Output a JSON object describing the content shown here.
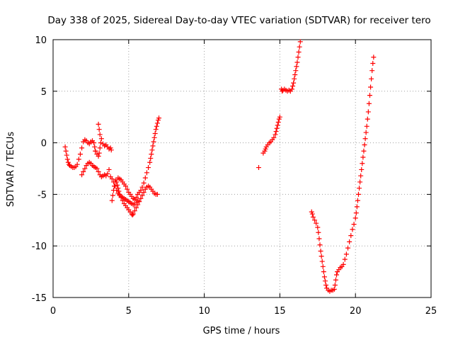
{
  "chart_data": {
    "type": "scatter",
    "title": "Day 338 of 2025, Sidereal Day-to-day VTEC variation (SDTVAR) for receiver tero",
    "xlabel": "GPS time / hours",
    "ylabel": "SDTVAR / TECUs",
    "xlim": [
      0,
      25
    ],
    "ylim": [
      -15,
      10
    ],
    "xticks": [
      "0",
      "5",
      "10",
      "15",
      "20",
      "25"
    ],
    "yticks": [
      "-15",
      "-10",
      "-5",
      "0",
      "5",
      "10"
    ],
    "grid": true,
    "marker": "plus",
    "marker_color": "#ff0000",
    "series": [
      {
        "name": "",
        "points": [
          [
            0.8,
            -0.4
          ],
          [
            0.85,
            -0.8
          ],
          [
            0.9,
            -1.2
          ],
          [
            0.95,
            -1.6
          ],
          [
            1.0,
            -1.9
          ],
          [
            1.05,
            -2.1
          ],
          [
            1.1,
            -2.2
          ],
          [
            1.2,
            -2.3
          ],
          [
            1.3,
            -2.4
          ],
          [
            1.4,
            -2.4
          ],
          [
            1.5,
            -2.3
          ],
          [
            1.6,
            -2.1
          ],
          [
            1.7,
            -1.6
          ],
          [
            1.8,
            -1.1
          ],
          [
            1.9,
            -0.5
          ],
          [
            2.0,
            0.1
          ],
          [
            2.1,
            0.3
          ],
          [
            2.2,
            0.2
          ],
          [
            2.3,
            0.0
          ],
          [
            2.4,
            -0.1
          ],
          [
            2.5,
            0.1
          ],
          [
            2.6,
            0.2
          ],
          [
            2.7,
            0.0
          ],
          [
            2.75,
            -0.4
          ],
          [
            2.8,
            -0.8
          ]
        ]
      },
      {
        "name": "",
        "points": [
          [
            1.9,
            -3.1
          ],
          [
            2.0,
            -2.8
          ],
          [
            2.1,
            -2.5
          ],
          [
            2.2,
            -2.2
          ],
          [
            2.3,
            -2.0
          ],
          [
            2.4,
            -1.9
          ],
          [
            2.5,
            -2.0
          ],
          [
            2.6,
            -2.2
          ],
          [
            2.7,
            -2.3
          ],
          [
            2.8,
            -2.4
          ],
          [
            2.9,
            -2.5
          ],
          [
            3.0,
            -2.8
          ],
          [
            3.1,
            -3.1
          ],
          [
            3.2,
            -3.3
          ],
          [
            3.3,
            -3.2
          ],
          [
            3.4,
            -3.1
          ],
          [
            3.5,
            -3.2
          ],
          [
            3.6,
            -3.0
          ],
          [
            3.7,
            -2.6
          ]
        ]
      },
      {
        "name": "",
        "points": [
          [
            2.8,
            -0.8
          ],
          [
            2.9,
            -1.1
          ],
          [
            3.0,
            -1.3
          ],
          [
            3.05,
            -1.0
          ],
          [
            3.1,
            -0.5
          ],
          [
            3.15,
            0.0
          ],
          [
            3.2,
            0.4
          ],
          [
            3.3,
            -0.1
          ],
          [
            3.4,
            -0.3
          ],
          [
            3.5,
            -0.2
          ],
          [
            3.6,
            -0.4
          ],
          [
            3.7,
            -0.6
          ],
          [
            3.8,
            -0.5
          ],
          [
            3.85,
            -0.7
          ]
        ]
      },
      {
        "name": "",
        "points": [
          [
            3.0,
            1.8
          ],
          [
            3.05,
            1.3
          ],
          [
            3.1,
            0.8
          ]
        ]
      },
      {
        "name": "",
        "points": [
          [
            3.8,
            -3.3
          ],
          [
            3.9,
            -3.5
          ],
          [
            4.0,
            -3.8
          ],
          [
            4.1,
            -4.2
          ],
          [
            4.2,
            -4.6
          ],
          [
            4.3,
            -4.9
          ],
          [
            4.4,
            -5.1
          ],
          [
            4.5,
            -5.2
          ],
          [
            4.6,
            -5.3
          ],
          [
            4.7,
            -5.4
          ],
          [
            4.8,
            -5.5
          ],
          [
            4.9,
            -5.6
          ],
          [
            5.0,
            -5.7
          ],
          [
            5.1,
            -5.8
          ],
          [
            5.2,
            -5.9
          ],
          [
            5.3,
            -6.0
          ],
          [
            5.4,
            -6.0
          ],
          [
            5.5,
            -5.8
          ],
          [
            5.6,
            -5.6
          ]
        ]
      },
      {
        "name": "",
        "points": [
          [
            3.9,
            -5.6
          ],
          [
            3.95,
            -5.1
          ],
          [
            4.0,
            -4.6
          ],
          [
            4.05,
            -4.2
          ],
          [
            4.1,
            -3.8
          ],
          [
            4.15,
            -3.6
          ],
          [
            4.2,
            -3.8
          ],
          [
            4.25,
            -4.1
          ],
          [
            4.3,
            -4.4
          ],
          [
            4.35,
            -4.7
          ],
          [
            4.4,
            -5.0
          ],
          [
            4.5,
            -5.3
          ],
          [
            4.6,
            -5.6
          ],
          [
            4.7,
            -5.9
          ],
          [
            4.8,
            -6.1
          ],
          [
            4.9,
            -6.3
          ],
          [
            5.0,
            -6.5
          ],
          [
            5.1,
            -6.7
          ],
          [
            5.2,
            -6.9
          ],
          [
            5.25,
            -7.0
          ],
          [
            5.3,
            -6.9
          ],
          [
            5.4,
            -6.6
          ],
          [
            5.5,
            -6.3
          ],
          [
            5.6,
            -6.0
          ],
          [
            5.7,
            -5.7
          ],
          [
            5.8,
            -5.4
          ],
          [
            5.9,
            -5.1
          ],
          [
            6.0,
            -4.8
          ],
          [
            6.1,
            -4.5
          ],
          [
            6.2,
            -4.3
          ],
          [
            6.3,
            -4.2
          ],
          [
            6.4,
            -4.3
          ],
          [
            6.5,
            -4.5
          ],
          [
            6.6,
            -4.7
          ],
          [
            6.7,
            -4.9
          ],
          [
            6.8,
            -5.0
          ],
          [
            6.9,
            -5.0
          ]
        ]
      },
      {
        "name": "",
        "points": [
          [
            4.3,
            -3.4
          ],
          [
            4.4,
            -3.5
          ],
          [
            4.5,
            -3.6
          ],
          [
            4.6,
            -3.8
          ],
          [
            4.7,
            -4.0
          ],
          [
            4.8,
            -4.2
          ],
          [
            4.9,
            -4.5
          ],
          [
            5.0,
            -4.8
          ],
          [
            5.1,
            -5.0
          ],
          [
            5.2,
            -5.2
          ],
          [
            5.3,
            -5.4
          ],
          [
            5.4,
            -5.5
          ],
          [
            5.5,
            -5.3
          ],
          [
            5.6,
            -5.0
          ],
          [
            5.7,
            -4.8
          ],
          [
            5.8,
            -4.6
          ],
          [
            5.9,
            -4.3
          ],
          [
            6.0,
            -3.9
          ],
          [
            6.1,
            -3.4
          ],
          [
            6.2,
            -2.9
          ],
          [
            6.3,
            -2.4
          ],
          [
            6.4,
            -1.9
          ],
          [
            6.45,
            -1.5
          ],
          [
            6.5,
            -1.1
          ],
          [
            6.55,
            -0.7
          ],
          [
            6.6,
            -0.3
          ],
          [
            6.65,
            0.1
          ],
          [
            6.7,
            0.5
          ],
          [
            6.75,
            0.9
          ],
          [
            6.8,
            1.3
          ],
          [
            6.85,
            1.6
          ],
          [
            6.9,
            1.9
          ],
          [
            6.95,
            2.2
          ],
          [
            7.0,
            2.4
          ]
        ]
      },
      {
        "name": "",
        "points": [
          [
            13.6,
            -2.4
          ]
        ]
      },
      {
        "name": "",
        "points": [
          [
            13.9,
            -1.0
          ],
          [
            14.0,
            -0.8
          ],
          [
            14.05,
            -0.6
          ],
          [
            14.1,
            -0.4
          ],
          [
            14.2,
            -0.2
          ],
          [
            14.3,
            0.0
          ],
          [
            14.4,
            0.1
          ],
          [
            14.5,
            0.3
          ],
          [
            14.6,
            0.5
          ],
          [
            14.7,
            0.8
          ],
          [
            14.75,
            1.1
          ],
          [
            14.8,
            1.4
          ],
          [
            14.85,
            1.7
          ],
          [
            14.9,
            2.0
          ],
          [
            14.95,
            2.3
          ],
          [
            15.0,
            2.5
          ]
        ]
      },
      {
        "name": "",
        "points": [
          [
            15.1,
            5.2
          ],
          [
            15.15,
            5.0
          ],
          [
            15.2,
            5.1
          ],
          [
            15.3,
            5.2
          ],
          [
            15.4,
            5.1
          ],
          [
            15.5,
            5.0
          ],
          [
            15.6,
            5.1
          ],
          [
            15.7,
            5.0
          ],
          [
            15.8,
            5.2
          ],
          [
            15.85,
            5.5
          ],
          [
            15.9,
            5.8
          ],
          [
            15.95,
            6.2
          ],
          [
            16.0,
            6.6
          ],
          [
            16.05,
            7.0
          ],
          [
            16.1,
            7.4
          ],
          [
            16.15,
            7.8
          ],
          [
            16.2,
            8.3
          ],
          [
            16.25,
            8.8
          ],
          [
            16.3,
            9.3
          ],
          [
            16.35,
            9.8
          ]
        ]
      },
      {
        "name": "",
        "points": [
          [
            17.1,
            -6.7
          ],
          [
            17.15,
            -6.9
          ],
          [
            17.2,
            -7.2
          ],
          [
            17.3,
            -7.5
          ],
          [
            17.4,
            -7.8
          ],
          [
            17.5,
            -8.2
          ],
          [
            17.55,
            -8.7
          ],
          [
            17.6,
            -9.3
          ],
          [
            17.65,
            -9.9
          ],
          [
            17.7,
            -10.5
          ],
          [
            17.75,
            -11.0
          ],
          [
            17.8,
            -11.5
          ],
          [
            17.85,
            -12.0
          ],
          [
            17.9,
            -12.5
          ],
          [
            17.95,
            -13.0
          ],
          [
            18.0,
            -13.4
          ],
          [
            18.05,
            -13.8
          ],
          [
            18.1,
            -14.1
          ],
          [
            18.2,
            -14.3
          ],
          [
            18.3,
            -14.4
          ],
          [
            18.4,
            -14.3
          ],
          [
            18.5,
            -14.3
          ],
          [
            18.6,
            -14.2
          ],
          [
            18.65,
            -13.8
          ],
          [
            18.7,
            -13.3
          ],
          [
            18.75,
            -12.8
          ],
          [
            18.8,
            -12.5
          ],
          [
            18.9,
            -12.3
          ],
          [
            19.0,
            -12.1
          ],
          [
            19.1,
            -12.0
          ],
          [
            19.2,
            -11.8
          ],
          [
            19.3,
            -11.3
          ],
          [
            19.4,
            -10.8
          ],
          [
            19.5,
            -10.2
          ],
          [
            19.6,
            -9.6
          ],
          [
            19.7,
            -9.0
          ],
          [
            19.8,
            -8.4
          ],
          [
            19.9,
            -7.9
          ],
          [
            20.0,
            -7.3
          ],
          [
            20.05,
            -6.8
          ],
          [
            20.1,
            -6.2
          ],
          [
            20.15,
            -5.6
          ],
          [
            20.2,
            -5.0
          ],
          [
            20.25,
            -4.4
          ],
          [
            20.3,
            -3.8
          ],
          [
            20.35,
            -3.2
          ],
          [
            20.4,
            -2.6
          ],
          [
            20.45,
            -2.0
          ],
          [
            20.5,
            -1.4
          ],
          [
            20.55,
            -0.8
          ],
          [
            20.6,
            -0.2
          ],
          [
            20.65,
            0.4
          ],
          [
            20.7,
            1.0
          ],
          [
            20.75,
            1.6
          ],
          [
            20.8,
            2.3
          ],
          [
            20.85,
            3.0
          ],
          [
            20.9,
            3.8
          ],
          [
            20.95,
            4.6
          ],
          [
            21.0,
            5.4
          ],
          [
            21.05,
            6.2
          ],
          [
            21.1,
            7.0
          ],
          [
            21.15,
            7.7
          ],
          [
            21.2,
            8.3
          ]
        ]
      }
    ]
  }
}
